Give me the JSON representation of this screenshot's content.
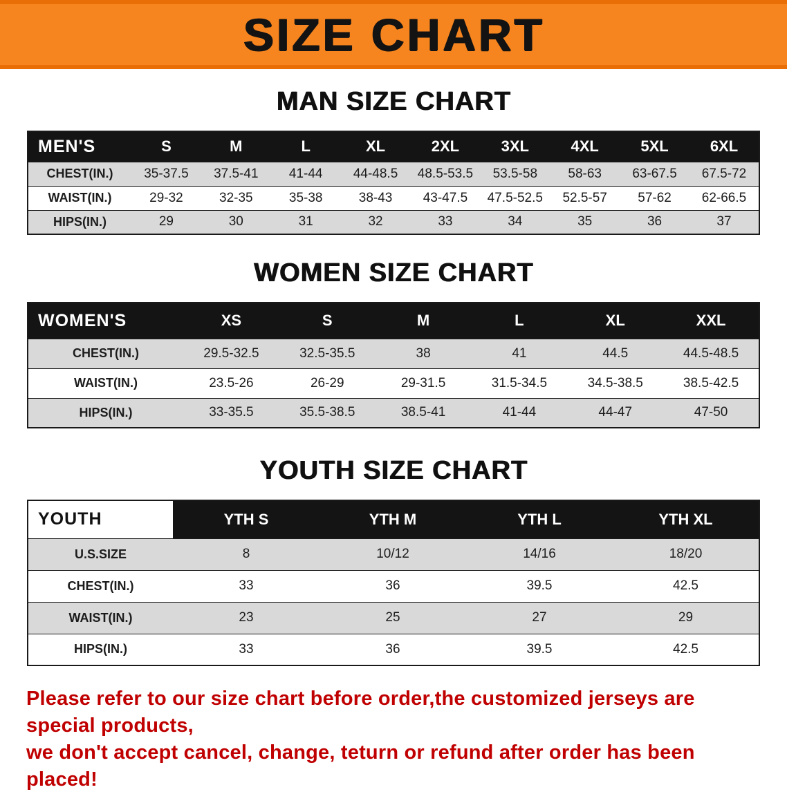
{
  "banner": {
    "title": "SIZE CHART"
  },
  "colors": {
    "banner_bg": "#f6851f",
    "header_bg": "#141414",
    "row_alt": "#d9d9d9",
    "footer_text": "#c00000"
  },
  "sections": [
    {
      "id": "men",
      "heading": "MAN SIZE CHART",
      "table": {
        "corner": "MEN'S",
        "columns": [
          "S",
          "M",
          "L",
          "XL",
          "2XL",
          "3XL",
          "4XL",
          "5XL",
          "6XL"
        ],
        "rows": [
          {
            "label": "CHEST(IN.)",
            "values": [
              "35-37.5",
              "37.5-41",
              "41-44",
              "44-48.5",
              "48.5-53.5",
              "53.5-58",
              "58-63",
              "63-67.5",
              "67.5-72"
            ]
          },
          {
            "label": "WAIST(IN.)",
            "values": [
              "29-32",
              "32-35",
              "35-38",
              "38-43",
              "43-47.5",
              "47.5-52.5",
              "52.5-57",
              "57-62",
              "62-66.5"
            ]
          },
          {
            "label": "HIPS(IN.)",
            "values": [
              "29",
              "30",
              "31",
              "32",
              "33",
              "34",
              "35",
              "36",
              "37"
            ]
          }
        ]
      }
    },
    {
      "id": "women",
      "heading": "WOMEN SIZE CHART",
      "table": {
        "corner": "WOMEN'S",
        "columns": [
          "XS",
          "S",
          "M",
          "L",
          "XL",
          "XXL"
        ],
        "rows": [
          {
            "label": "CHEST(IN.)",
            "values": [
              "29.5-32.5",
              "32.5-35.5",
              "38",
              "41",
              "44.5",
              "44.5-48.5"
            ]
          },
          {
            "label": "WAIST(IN.)",
            "values": [
              "23.5-26",
              "26-29",
              "29-31.5",
              "31.5-34.5",
              "34.5-38.5",
              "38.5-42.5"
            ]
          },
          {
            "label": "HIPS(IN.)",
            "values": [
              "33-35.5",
              "35.5-38.5",
              "38.5-41",
              "41-44",
              "44-47",
              "47-50"
            ]
          }
        ]
      }
    },
    {
      "id": "youth",
      "heading": "YOUTH SIZE CHART",
      "table": {
        "corner": "YOUTH",
        "corner_style": "light",
        "columns": [
          "YTH S",
          "YTH M",
          "YTH L",
          "YTH XL"
        ],
        "rows": [
          {
            "label": "U.S.SIZE",
            "values": [
              "8",
              "10/12",
              "14/16",
              "18/20"
            ]
          },
          {
            "label": "CHEST(IN.)",
            "values": [
              "33",
              "36",
              "39.5",
              "42.5"
            ]
          },
          {
            "label": "WAIST(IN.)",
            "values": [
              "23",
              "25",
              "27",
              "29"
            ]
          },
          {
            "label": "HIPS(IN.)",
            "values": [
              "33",
              "36",
              "39.5",
              "42.5"
            ]
          }
        ]
      }
    }
  ],
  "footer": {
    "line1": "Please refer to our size chart before order,the customized jerseys are special products,",
    "line2": "we don't accept cancel, change, teturn or refund after order has been placed!"
  }
}
